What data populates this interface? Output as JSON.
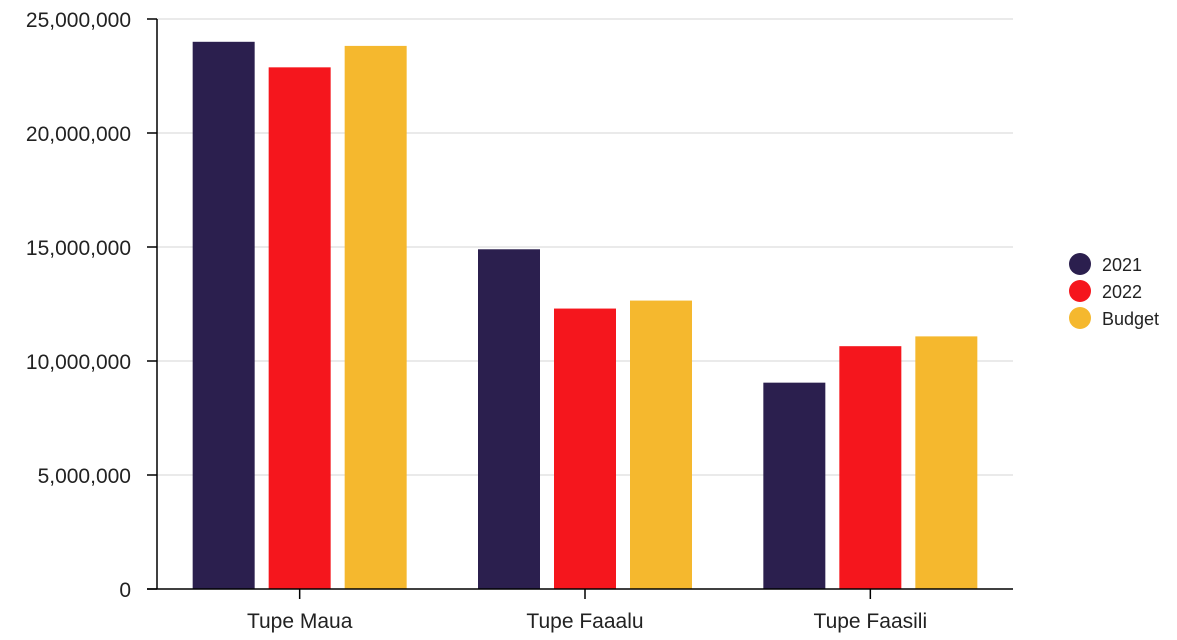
{
  "chart_data": {
    "type": "bar",
    "categories": [
      "Tupe Maua",
      "Tupe Faaalu",
      "Tupe Faasili"
    ],
    "series": [
      {
        "name": "2021",
        "color": "#2b1f4e",
        "values": [
          24000000,
          14900000,
          9050000
        ]
      },
      {
        "name": "2022",
        "color": "#f5161d",
        "values": [
          22880000,
          12300000,
          10650000
        ]
      },
      {
        "name": "Budget",
        "color": "#f5b82e",
        "values": [
          23820000,
          12650000,
          11080000
        ]
      }
    ],
    "yticks": [
      "0",
      "5,000,000",
      "10,000,000",
      "15,000,000",
      "20,000,000",
      "25,000,000"
    ],
    "ylim": [
      0,
      25000000
    ],
    "grid": true,
    "legend": "right"
  }
}
